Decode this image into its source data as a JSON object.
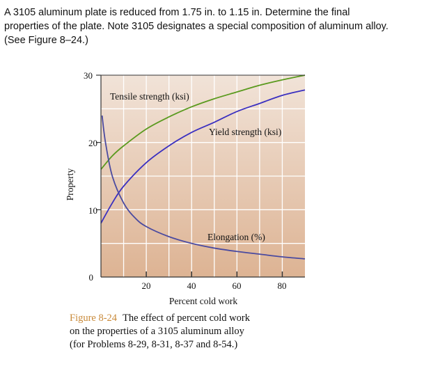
{
  "question": {
    "lines": [
      "A 3105 aluminum plate is reduced from 1.75 in. to 1.15 in. Determine the final",
      "properties of the plate. Note 3105 designates a special composition of aluminum alloy.",
      "(See Figure 8–24.)"
    ]
  },
  "caption": {
    "figure_label": "Figure 8-24",
    "line1": "The effect of percent cold work",
    "line2": "on the properties of a 3105 aluminum alloy",
    "line3": "(for Problems 8-29, 8-31, 8-37 and 8-54.)",
    "label_color": "#c98a3a"
  },
  "chart_data": {
    "type": "line",
    "xlabel": "Percent cold work",
    "ylabel": "Property",
    "xlim": [
      0,
      90
    ],
    "ylim": [
      0,
      30
    ],
    "x_ticks": [
      "20",
      "40",
      "60",
      "80"
    ],
    "y_ticks": [
      "0",
      "10",
      "20",
      "30"
    ],
    "grid": true,
    "background": [
      "#f1e3d8",
      "#ddb393"
    ],
    "series": [
      {
        "name": "Tensile strength (ksi)",
        "color": "#5a9a1e",
        "x": [
          0,
          5,
          10,
          20,
          30,
          40,
          50,
          60,
          70,
          80,
          90
        ],
        "y": [
          16,
          18,
          19.5,
          22,
          23.8,
          25.3,
          26.5,
          27.5,
          28.5,
          29.3,
          30
        ]
      },
      {
        "name": "Yield strength (ksi)",
        "color": "#3a2fc0",
        "x": [
          0,
          5,
          10,
          20,
          30,
          40,
          50,
          60,
          70,
          80,
          90
        ],
        "y": [
          8,
          11,
          13.5,
          17,
          19.5,
          21.5,
          23,
          24.6,
          25.8,
          27,
          27.8
        ]
      },
      {
        "name": "Elongation (%)",
        "color": "#4a4aa0",
        "x": [
          0.5,
          2,
          5,
          10,
          15,
          20,
          30,
          40,
          50,
          60,
          70,
          80,
          90
        ],
        "y": [
          24,
          20,
          15,
          11,
          8.8,
          7.5,
          6,
          5,
          4.3,
          3.8,
          3.4,
          3,
          2.7
        ]
      }
    ]
  }
}
